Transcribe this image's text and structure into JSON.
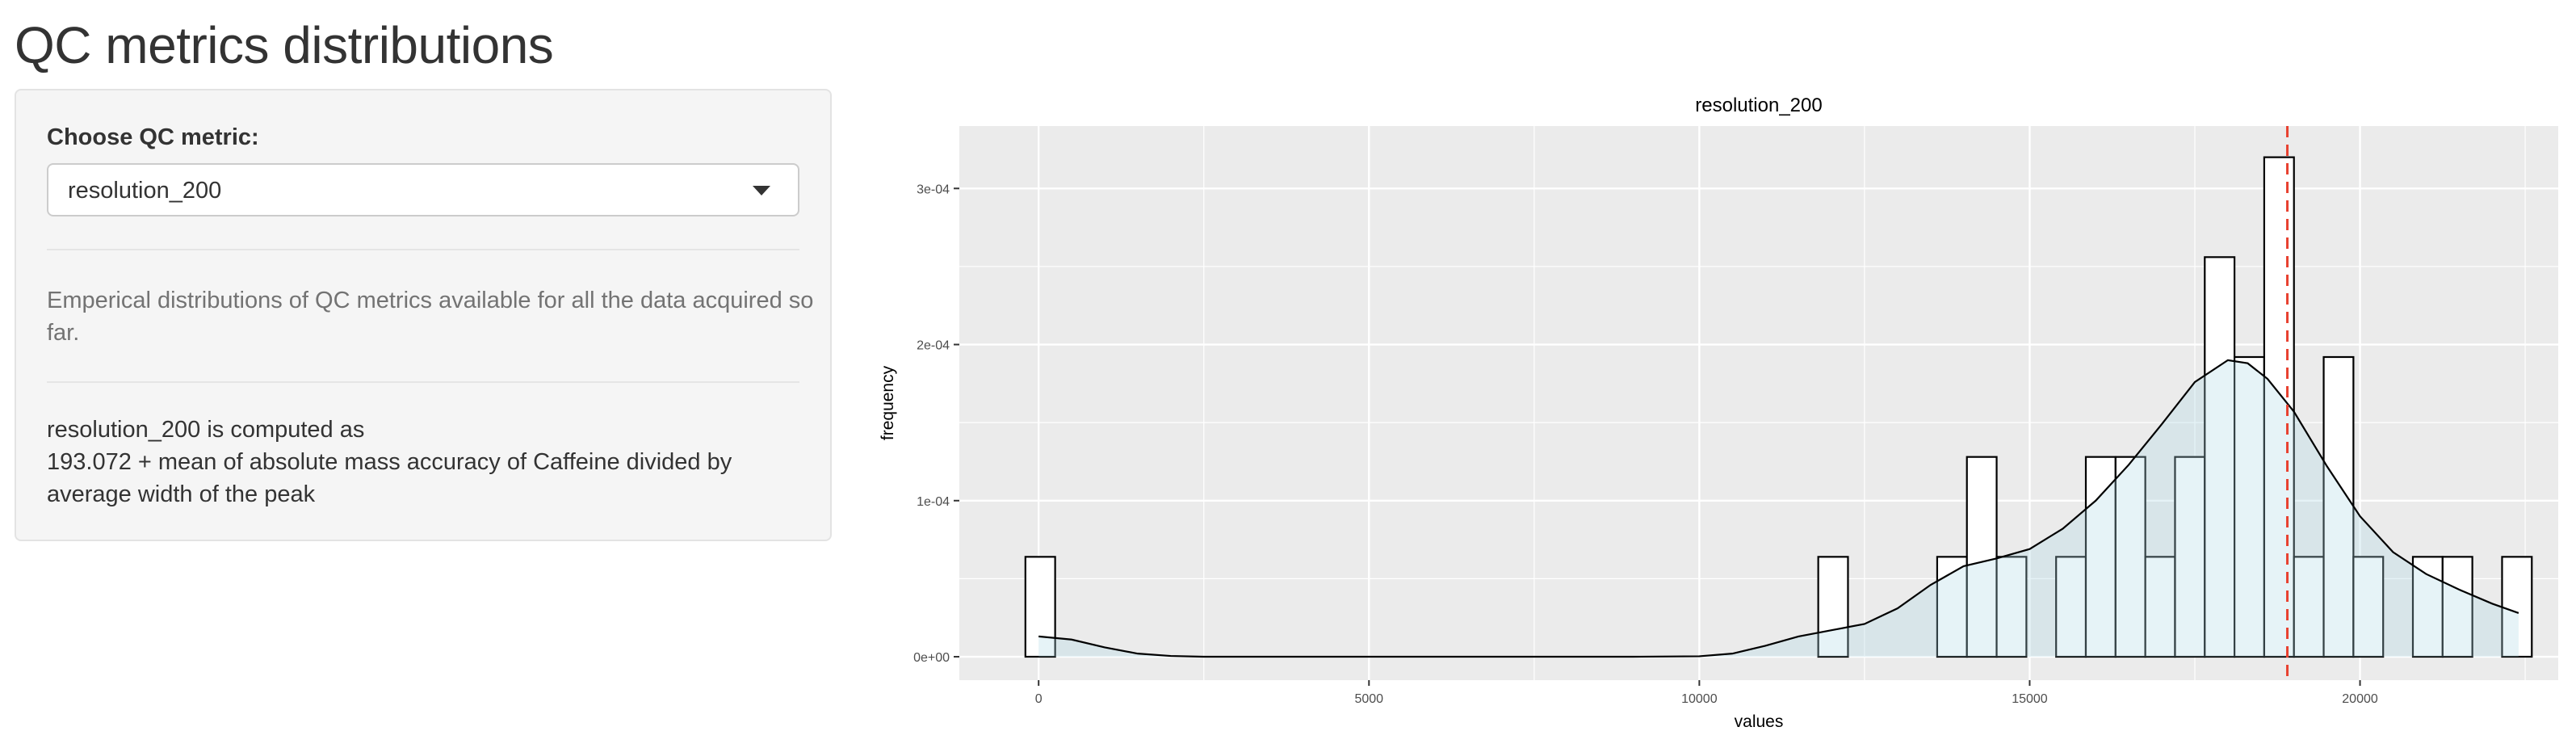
{
  "page": {
    "title": "QC metrics distributions"
  },
  "sidebar": {
    "select_label": "Choose QC metric:",
    "selected_metric": "resolution_200",
    "help_text": "Emperical distributions of QC metrics available for all the data acquired so far.",
    "description_lines": [
      "resolution_200 is computed as",
      "193.072 + mean of absolute mass accuracy of Caffeine divided by",
      "average width of the peak"
    ]
  },
  "colors": {
    "panel_bg": "#ebebeb",
    "grid": "#ffffff",
    "bar_fill": "#ffffff",
    "bar_outline": "#000000",
    "density_fill": "#add8e6",
    "vline": "#e8402f"
  },
  "chart_data": {
    "type": "histogram",
    "title": "resolution_200",
    "xlabel": "values",
    "ylabel": "frequency",
    "xlim": [
      -1200,
      23000
    ],
    "ylim": [
      -1.5e-05,
      0.00034
    ],
    "x_ticks": [
      0,
      5000,
      10000,
      15000,
      20000
    ],
    "x_tick_labels": [
      "0",
      "5000",
      "10000",
      "15000",
      "20000"
    ],
    "y_ticks": [
      0,
      0.0001,
      0.0002,
      0.0003
    ],
    "y_tick_labels": [
      "0e+00",
      "1e-04",
      "2e-04",
      "3e-04"
    ],
    "grid": true,
    "bin_width": 450,
    "bins": [
      {
        "x_start": -200,
        "density": 6.4e-05
      },
      {
        "x_start": 11800,
        "density": 6.4e-05
      },
      {
        "x_start": 13600,
        "density": 6.4e-05
      },
      {
        "x_start": 14050,
        "density": 0.000128
      },
      {
        "x_start": 14500,
        "density": 6.4e-05
      },
      {
        "x_start": 15400,
        "density": 6.4e-05
      },
      {
        "x_start": 15850,
        "density": 0.000128
      },
      {
        "x_start": 16300,
        "density": 0.000128
      },
      {
        "x_start": 16750,
        "density": 6.4e-05
      },
      {
        "x_start": 17200,
        "density": 0.000128
      },
      {
        "x_start": 17650,
        "density": 0.000256
      },
      {
        "x_start": 18100,
        "density": 0.000192
      },
      {
        "x_start": 18550,
        "density": 0.00032
      },
      {
        "x_start": 19000,
        "density": 6.4e-05
      },
      {
        "x_start": 19450,
        "density": 0.000192
      },
      {
        "x_start": 19900,
        "density": 6.4e-05
      },
      {
        "x_start": 20800,
        "density": 6.4e-05
      },
      {
        "x_start": 21250,
        "density": 6.4e-05
      },
      {
        "x_start": 22150,
        "density": 6.4e-05
      }
    ],
    "density_curve": {
      "x": [
        0,
        500,
        1000,
        1500,
        2000,
        2500,
        3000,
        4000,
        5000,
        6000,
        7000,
        8000,
        9000,
        10000,
        10500,
        11000,
        11500,
        12000,
        12500,
        13000,
        13500,
        14000,
        14500,
        15000,
        15500,
        16000,
        16500,
        17000,
        17500,
        18000,
        18300,
        18600,
        19000,
        19500,
        20000,
        20500,
        21000,
        21500,
        22000,
        22400
      ],
      "y": [
        1.3e-05,
        1.1e-05,
        6e-06,
        2e-06,
        5e-07,
        0,
        0,
        0,
        0,
        0,
        0,
        0,
        0,
        3e-07,
        2e-06,
        7e-06,
        1.3e-05,
        1.7e-05,
        2.1e-05,
        3.1e-05,
        4.6e-05,
        5.8e-05,
        6.3e-05,
        6.9e-05,
        8.2e-05,
        0.0001,
        0.000123,
        0.000149,
        0.000176,
        0.00019,
        0.000188,
        0.000178,
        0.000157,
        0.000122,
        9e-05,
        6.7e-05,
        5.3e-05,
        4.3e-05,
        3.4e-05,
        2.8e-05
      ]
    },
    "vline_x": 18900
  }
}
